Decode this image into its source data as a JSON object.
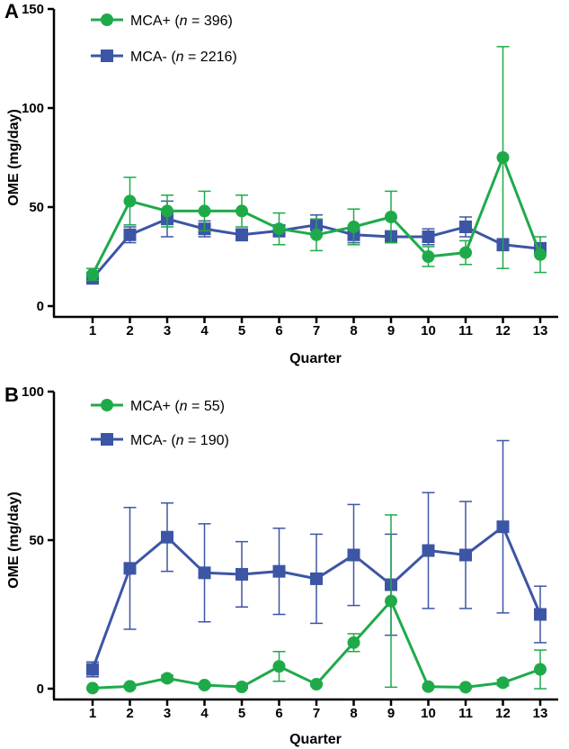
{
  "colors": {
    "mca_plus": "#1faa4a",
    "mca_minus": "#3d55a5",
    "axis": "#000000"
  },
  "chart_data": [
    {
      "panel": "A",
      "type": "line",
      "xlabel": "Quarter",
      "ylabel": "OME (mg/day)",
      "ylim": [
        0,
        150
      ],
      "yticks": [
        "0",
        "50",
        "100",
        "150"
      ],
      "categories": [
        "1",
        "2",
        "3",
        "4",
        "5",
        "6",
        "7",
        "8",
        "9",
        "10",
        "11",
        "12",
        "13"
      ],
      "series": [
        {
          "name": "MCA+",
          "legend_prefix": "MCA+ (",
          "n_italic": "n",
          "legend_suffix": " = 396)",
          "marker": "circle",
          "values": [
            16,
            53,
            48,
            48,
            48,
            39,
            36,
            40,
            45,
            25,
            27,
            75,
            26
          ],
          "err": [
            3,
            12,
            8,
            10,
            8,
            8,
            8,
            9,
            13,
            5,
            6,
            56,
            9
          ]
        },
        {
          "name": "MCA-",
          "legend_prefix": "MCA- (",
          "n_italic": "n",
          "legend_suffix": " = 2216)",
          "marker": "square",
          "values": [
            14,
            36,
            44,
            39,
            36,
            38,
            41,
            36,
            35,
            35,
            40,
            31,
            29
          ],
          "err": [
            2,
            4,
            9,
            4,
            3,
            3,
            5,
            4,
            3,
            4,
            5,
            3,
            3
          ]
        }
      ]
    },
    {
      "panel": "B",
      "type": "line",
      "xlabel": "Quarter",
      "ylabel": "OME (mg/day)",
      "ylim": [
        0,
        100
      ],
      "yticks": [
        "0",
        "50",
        "100"
      ],
      "categories": [
        "1",
        "2",
        "3",
        "4",
        "5",
        "6",
        "7",
        "8",
        "9",
        "10",
        "11",
        "12",
        "13"
      ],
      "series": [
        {
          "name": "MCA+",
          "legend_prefix": "MCA+ (",
          "n_italic": "n",
          "legend_suffix": " = 55)",
          "marker": "circle",
          "values": [
            0.2,
            0.8,
            3.5,
            1.2,
            0.6,
            7.5,
            1.5,
            15.5,
            29.5,
            0.7,
            0.5,
            2,
            6.5
          ],
          "err": [
            0,
            0.5,
            1,
            0.6,
            0.4,
            5,
            0.5,
            3,
            29,
            0.3,
            0.3,
            1,
            6.5
          ]
        },
        {
          "name": "MCA-",
          "legend_prefix": "MCA- (",
          "n_italic": "n",
          "legend_suffix": " = 190)",
          "marker": "square",
          "values": [
            6.5,
            40.5,
            51,
            39,
            38.5,
            39.5,
            37,
            45,
            35,
            46.5,
            45,
            54.5,
            25
          ],
          "err": [
            2.5,
            20.5,
            11.5,
            16.5,
            11,
            14.5,
            15,
            17,
            17,
            19.5,
            18,
            29,
            9.5
          ]
        }
      ]
    }
  ]
}
